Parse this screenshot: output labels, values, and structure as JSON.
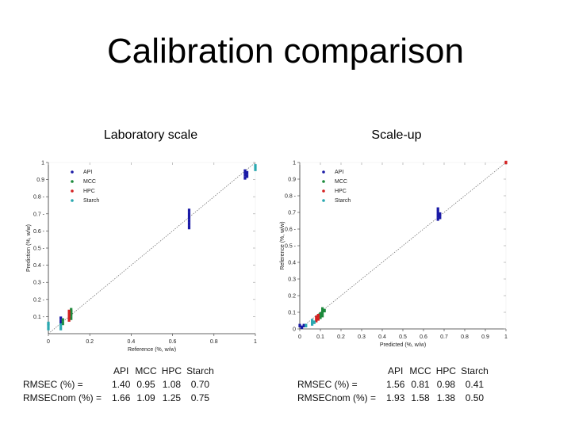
{
  "slide": {
    "title": "Calibration comparison"
  },
  "panels": [
    {
      "title": "Laboratory scale"
    },
    {
      "title": "Scale-up"
    }
  ],
  "colors": {
    "API": "#1a1aa6",
    "MCC": "#1c8a3c",
    "HPC": "#d42020",
    "Starch": "#2aa8b0",
    "diagonal": "#777777",
    "axis": "#333333"
  },
  "chart_data": [
    {
      "type": "scatter",
      "title": "Laboratory scale",
      "xlabel": "Reference (%, w/w)",
      "ylabel": "Prediction (%, w/w)",
      "xlim": [
        0,
        1
      ],
      "ylim": [
        0,
        1
      ],
      "xticks": [
        0,
        0.2,
        0.4,
        0.6,
        0.8,
        1
      ],
      "xtick_labels": [
        "0",
        "0.2",
        "0.4",
        "0.6",
        "0.8",
        "1"
      ],
      "yticks": [
        0.1,
        0.2,
        0.3,
        0.4,
        0.5,
        0.6,
        0.7,
        0.8,
        0.9,
        1
      ],
      "ytick_labels": [
        "0.1 -",
        "0.2 -",
        "0.3 -",
        "0.4 -",
        "0.5 -",
        "0.6 -",
        "0.7 -",
        "0.8 -",
        "0.9",
        "1"
      ],
      "legend": [
        "API",
        "MCC",
        "HPC",
        "Starch"
      ],
      "legend_position": "top-left",
      "series": [
        {
          "name": "API",
          "points": [
            [
              0.68,
              0.62
            ],
            [
              0.68,
              0.64
            ],
            [
              0.68,
              0.66
            ],
            [
              0.68,
              0.68
            ],
            [
              0.68,
              0.7
            ],
            [
              0.68,
              0.72
            ],
            [
              0.95,
              0.91
            ],
            [
              0.95,
              0.93
            ],
            [
              0.95,
              0.95
            ],
            [
              0.96,
              0.92
            ],
            [
              0.96,
              0.94
            ],
            [
              0.06,
              0.07
            ],
            [
              0.06,
              0.09
            ]
          ]
        },
        {
          "name": "MCC",
          "points": [
            [
              0.11,
              0.09
            ],
            [
              0.11,
              0.11
            ],
            [
              0.11,
              0.12
            ],
            [
              0.11,
              0.13
            ],
            [
              0.11,
              0.14
            ],
            [
              0.07,
              0.06
            ],
            [
              0.07,
              0.08
            ]
          ]
        },
        {
          "name": "HPC",
          "points": [
            [
              0.1,
              0.08
            ],
            [
              0.1,
              0.1
            ],
            [
              0.1,
              0.11
            ],
            [
              0.1,
              0.12
            ],
            [
              0.1,
              0.13
            ]
          ]
        },
        {
          "name": "Starch",
          "points": [
            [
              0.0,
              0.03
            ],
            [
              0.0,
              0.05
            ],
            [
              0.0,
              0.06
            ],
            [
              0.06,
              0.03
            ],
            [
              0.06,
              0.05
            ],
            [
              1.0,
              0.96
            ],
            [
              1.0,
              0.98
            ]
          ]
        }
      ]
    },
    {
      "type": "scatter",
      "title": "Scale-up",
      "xlabel": "Predicted (%, w/w)",
      "ylabel": "Reference (%, w/w)",
      "xlim": [
        0,
        1
      ],
      "ylim": [
        0,
        1
      ],
      "xticks": [
        0,
        0.1,
        0.2,
        0.3,
        0.4,
        0.5,
        0.6,
        0.7,
        0.8,
        0.9,
        1
      ],
      "xtick_labels": [
        "0",
        "0.1",
        "0.2",
        "0.3",
        "0.4",
        "0.5",
        "0.6",
        "0.7",
        "0.8",
        "0.9",
        "1"
      ],
      "yticks": [
        0,
        0.1,
        0.2,
        0.3,
        0.4,
        0.5,
        0.6,
        0.7,
        0.8,
        0.9,
        1
      ],
      "ytick_labels": [
        "0",
        "0.1",
        "0.2",
        "0.3",
        "0.4",
        "0.5 -",
        "0.6 -",
        "0.7",
        "0.8 -",
        "0.9",
        "1"
      ],
      "legend": [
        "API",
        "MCC",
        "HPC",
        "Starch"
      ],
      "legend_position": "top-left",
      "series": [
        {
          "name": "API",
          "points": [
            [
              0.67,
              0.66
            ],
            [
              0.67,
              0.68
            ],
            [
              0.67,
              0.7
            ],
            [
              0.67,
              0.72
            ],
            [
              0.68,
              0.67
            ],
            [
              0.68,
              0.69
            ],
            [
              0.0,
              0.02
            ],
            [
              0.01,
              0.01
            ],
            [
              0.02,
              0.02
            ]
          ]
        },
        {
          "name": "MCC",
          "points": [
            [
              0.1,
              0.07
            ],
            [
              0.1,
              0.09
            ],
            [
              0.11,
              0.08
            ],
            [
              0.11,
              0.1
            ],
            [
              0.11,
              0.12
            ],
            [
              0.12,
              0.11
            ]
          ]
        },
        {
          "name": "HPC",
          "points": [
            [
              0.08,
              0.05
            ],
            [
              0.08,
              0.07
            ],
            [
              0.09,
              0.06
            ],
            [
              0.09,
              0.08
            ],
            [
              1.0,
              1.0
            ]
          ]
        },
        {
          "name": "Starch",
          "points": [
            [
              0.06,
              0.03
            ],
            [
              0.06,
              0.05
            ],
            [
              0.07,
              0.04
            ],
            [
              0.03,
              0.02
            ]
          ]
        }
      ]
    }
  ],
  "stats": [
    {
      "header": [
        "API",
        "MCC",
        "HPC",
        "Starch"
      ],
      "rows": [
        {
          "label": "RMSEC  (%) =",
          "values": [
            "1.40",
            "0.95",
            "1.08",
            "0.70"
          ]
        },
        {
          "label": "RMSECnom  (%)  =",
          "values": [
            "1.66",
            "1.09",
            "1.25",
            "0.75"
          ]
        }
      ]
    },
    {
      "header": [
        "API",
        "MCC",
        "HPC",
        "Starch"
      ],
      "rows": [
        {
          "label": "RMSEC  (%) =",
          "values": [
            "1.56",
            "0.81",
            "0.98",
            "0.41"
          ]
        },
        {
          "label": "RMSECnom  (%)  =",
          "values": [
            "1.93",
            "1.58",
            "1.38",
            "0.50"
          ]
        }
      ]
    }
  ]
}
